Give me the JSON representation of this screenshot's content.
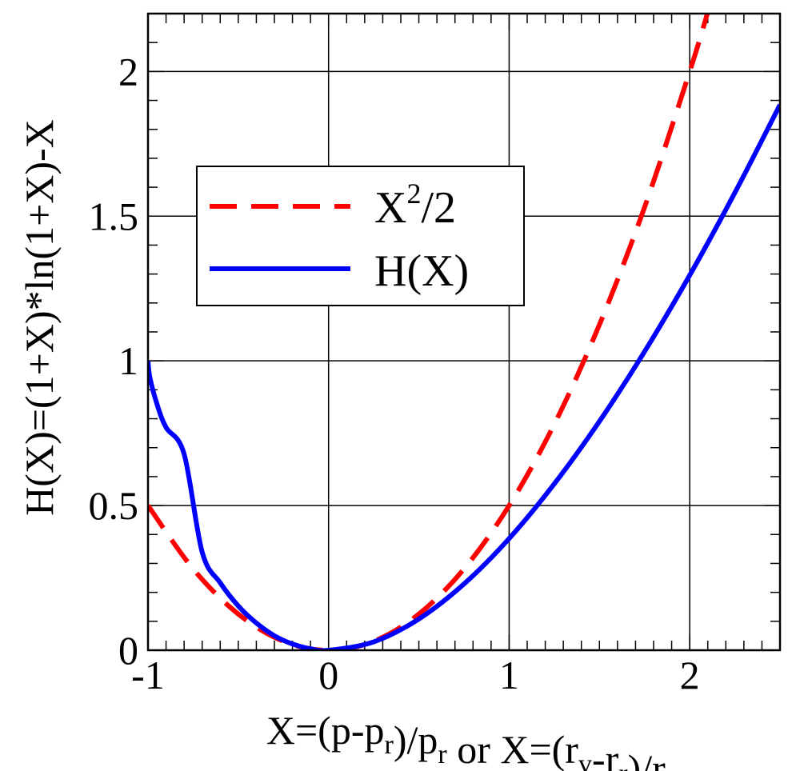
{
  "chart_data": {
    "type": "line",
    "title": "",
    "xlabel": "X=(p-p_r)/p_r or X=(r_v-r_r)/r_r",
    "ylabel": "H(X)=(1+X)*ln(1+X)-X",
    "xlim": [
      -1,
      2.5
    ],
    "ylim": [
      0,
      2.2
    ],
    "x_ticks": [
      -1,
      0,
      1,
      2
    ],
    "y_ticks": [
      0,
      0.5,
      1,
      1.5,
      2
    ],
    "x_tick_labels": [
      "-1",
      "0",
      "1",
      "2"
    ],
    "y_tick_labels": [
      "0",
      "0.5",
      "1",
      "1.5",
      "2"
    ],
    "grid": true,
    "legend_position": "top-left",
    "series": [
      {
        "name": "X^2/2",
        "color": "#ff0000",
        "style": "dashed",
        "x": [
          -1.0,
          -0.75,
          -0.5,
          -0.25,
          0.0,
          0.25,
          0.5,
          0.75,
          1.0,
          1.25,
          1.5,
          1.75,
          2.0,
          2.1
        ],
        "y": [
          0.5,
          0.281,
          0.125,
          0.031,
          0.0,
          0.031,
          0.125,
          0.281,
          0.5,
          0.781,
          1.125,
          1.531,
          2.0,
          2.205
        ]
      },
      {
        "name": "H(X)",
        "color": "#0000ff",
        "style": "solid",
        "x": [
          -1.0,
          -0.99,
          -0.95,
          -0.9,
          -0.8,
          -0.7,
          -0.6,
          -0.5,
          -0.4,
          -0.3,
          -0.2,
          -0.1,
          0.0,
          0.25,
          0.5,
          0.75,
          1.0,
          1.25,
          1.5,
          1.75,
          2.0,
          2.25,
          2.5
        ],
        "y": [
          1.0,
          0.944,
          0.85,
          0.77,
          0.678,
          0.339,
          0.233,
          0.153,
          0.094,
          0.05,
          0.0215,
          0.0052,
          0.0,
          0.0289,
          0.108,
          0.229,
          0.386,
          0.575,
          0.791,
          1.032,
          1.296,
          1.581,
          1.885
        ]
      }
    ]
  }
}
